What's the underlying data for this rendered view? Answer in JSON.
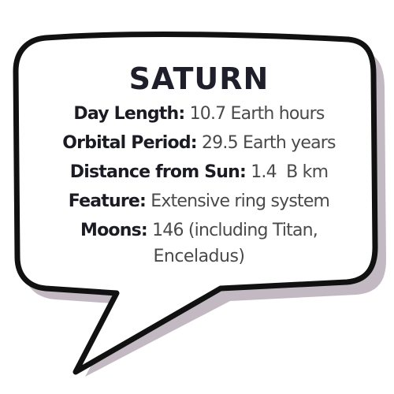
{
  "bubble": {
    "fill": "#ffffff",
    "outline": "#111111",
    "shadow": "#b7adb8"
  },
  "title": "SATURN",
  "facts": [
    {
      "label": "Day Length:",
      "value": "10.7 Earth hours"
    },
    {
      "label": "Orbital Period:",
      "value": "29.5 Earth years"
    },
    {
      "label": "Distance from Sun:",
      "value": "1.4  B km"
    },
    {
      "label": "Feature:",
      "value": "Extensive ring system"
    },
    {
      "label": "Moons:",
      "value": "146 (including Titan,"
    }
  ],
  "moons_continuation": "Enceladus)"
}
